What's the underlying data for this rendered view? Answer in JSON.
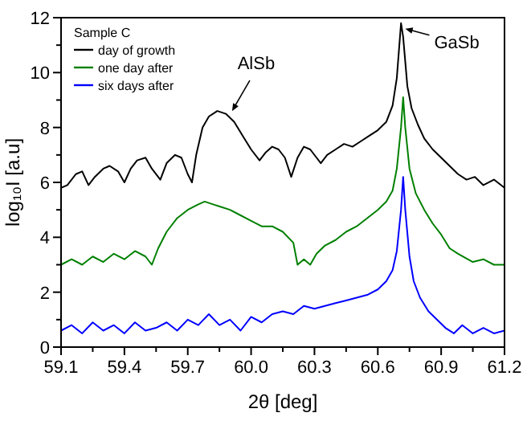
{
  "chart_data": {
    "type": "line",
    "xlabel": "2θ [deg]",
    "ylabel": "log₁₀I [a.u]",
    "legend_title": "Sample C",
    "legend": "top left",
    "grid": false,
    "xlim": [
      59.1,
      61.2
    ],
    "ylim": [
      0,
      12
    ],
    "xticks": [
      59.1,
      {
        "value": 59.25,
        "label": null
      },
      59.4,
      {
        "value": 59.55,
        "label": null
      },
      59.7,
      {
        "value": 59.85,
        "label": null
      },
      {
        "value": 60,
        "label": "60.0"
      },
      {
        "value": 60.15,
        "label": null
      },
      60.3,
      {
        "value": 60.45,
        "label": null
      },
      60.6,
      {
        "value": 60.75,
        "label": null
      },
      60.9,
      {
        "value": 61.05,
        "label": null
      },
      61.2
    ],
    "yticks": [
      0,
      {
        "value": 1,
        "label": null
      },
      2,
      {
        "value": 3,
        "label": null
      },
      4,
      {
        "value": 5,
        "label": null
      },
      6,
      {
        "value": 7,
        "label": null
      },
      8,
      {
        "value": 9,
        "label": null
      },
      10,
      {
        "value": 11,
        "label": null
      },
      12
    ],
    "annotations": [
      {
        "text": "AlSb",
        "x": 59.91,
        "y": 8.6
      },
      {
        "text": "GaSb",
        "x": 60.73,
        "y": 11.6
      }
    ],
    "series": [
      {
        "name": "day of growth",
        "color": "#000000",
        "x": [
          59.1,
          59.13,
          59.17,
          59.2,
          59.23,
          59.26,
          59.3,
          59.33,
          59.37,
          59.4,
          59.43,
          59.46,
          59.5,
          59.53,
          59.57,
          59.6,
          59.64,
          59.67,
          59.7,
          59.72,
          59.74,
          59.77,
          59.8,
          59.84,
          59.88,
          59.92,
          59.96,
          60.0,
          60.04,
          60.07,
          60.1,
          60.13,
          60.16,
          60.19,
          60.22,
          60.25,
          60.28,
          60.31,
          60.33,
          60.36,
          60.4,
          60.44,
          60.48,
          60.52,
          60.56,
          60.6,
          60.64,
          60.67,
          60.69,
          60.71,
          60.72,
          60.74,
          60.76,
          60.79,
          60.82,
          60.86,
          60.9,
          60.94,
          60.98,
          61.02,
          61.06,
          61.1,
          61.15,
          61.2
        ],
        "values": [
          5.8,
          5.9,
          6.3,
          6.4,
          5.9,
          6.2,
          6.5,
          6.6,
          6.4,
          6.0,
          6.5,
          6.8,
          6.9,
          6.5,
          6.1,
          6.7,
          7.0,
          6.9,
          6.3,
          6.0,
          7.0,
          8.0,
          8.4,
          8.6,
          8.5,
          8.2,
          7.7,
          7.2,
          6.8,
          7.1,
          7.3,
          7.2,
          6.9,
          6.2,
          6.9,
          7.3,
          7.2,
          6.9,
          6.7,
          7.0,
          7.2,
          7.4,
          7.3,
          7.5,
          7.7,
          7.9,
          8.2,
          8.8,
          9.8,
          11.8,
          11.3,
          9.5,
          8.7,
          8.1,
          7.6,
          7.2,
          6.9,
          6.6,
          6.3,
          6.1,
          6.2,
          5.9,
          6.1,
          5.8
        ]
      },
      {
        "name": "one day after",
        "color": "#008000",
        "x": [
          59.1,
          59.15,
          59.2,
          59.25,
          59.3,
          59.35,
          59.4,
          59.45,
          59.5,
          59.53,
          59.56,
          59.6,
          59.65,
          59.7,
          59.75,
          59.78,
          59.82,
          59.86,
          59.9,
          59.95,
          60.0,
          60.05,
          60.1,
          60.15,
          60.2,
          60.22,
          60.25,
          60.28,
          60.31,
          60.35,
          60.4,
          60.45,
          60.5,
          60.55,
          60.6,
          60.64,
          60.67,
          60.69,
          60.71,
          60.72,
          60.73,
          60.75,
          60.78,
          60.82,
          60.86,
          60.9,
          60.94,
          60.98,
          61.05,
          61.1,
          61.15,
          61.2
        ],
        "values": [
          3.0,
          3.2,
          3.0,
          3.3,
          3.1,
          3.4,
          3.2,
          3.5,
          3.3,
          3.0,
          3.6,
          4.2,
          4.7,
          5.0,
          5.2,
          5.3,
          5.2,
          5.1,
          5.0,
          4.8,
          4.6,
          4.4,
          4.4,
          4.2,
          3.8,
          3.0,
          3.2,
          3.0,
          3.4,
          3.7,
          3.9,
          4.2,
          4.4,
          4.7,
          5.0,
          5.3,
          5.7,
          6.5,
          8.0,
          9.1,
          8.0,
          6.5,
          5.6,
          5.0,
          4.5,
          4.1,
          3.6,
          3.4,
          3.1,
          3.2,
          3.0,
          3.0
        ]
      },
      {
        "name": "six days after",
        "color": "#0000ff",
        "x": [
          59.1,
          59.15,
          59.2,
          59.25,
          59.3,
          59.35,
          59.4,
          59.45,
          59.5,
          59.55,
          59.6,
          59.65,
          59.7,
          59.75,
          59.8,
          59.85,
          59.9,
          59.95,
          60.0,
          60.05,
          60.1,
          60.15,
          60.2,
          60.25,
          60.3,
          60.35,
          60.4,
          60.45,
          60.5,
          60.55,
          60.6,
          60.64,
          60.67,
          60.69,
          60.71,
          60.72,
          60.73,
          60.75,
          60.77,
          60.8,
          60.84,
          60.88,
          60.92,
          60.96,
          61.0,
          61.05,
          61.1,
          61.15,
          61.2
        ],
        "values": [
          0.6,
          0.8,
          0.5,
          0.9,
          0.6,
          0.8,
          0.5,
          0.9,
          0.6,
          0.7,
          0.9,
          0.6,
          1.0,
          0.8,
          1.2,
          0.8,
          1.0,
          0.6,
          1.1,
          0.9,
          1.2,
          1.3,
          1.2,
          1.5,
          1.4,
          1.5,
          1.6,
          1.7,
          1.8,
          1.9,
          2.1,
          2.4,
          2.8,
          3.5,
          5.0,
          6.2,
          5.0,
          3.3,
          2.4,
          1.8,
          1.3,
          1.0,
          0.7,
          0.5,
          0.8,
          0.5,
          0.7,
          0.5,
          0.6
        ]
      }
    ]
  }
}
